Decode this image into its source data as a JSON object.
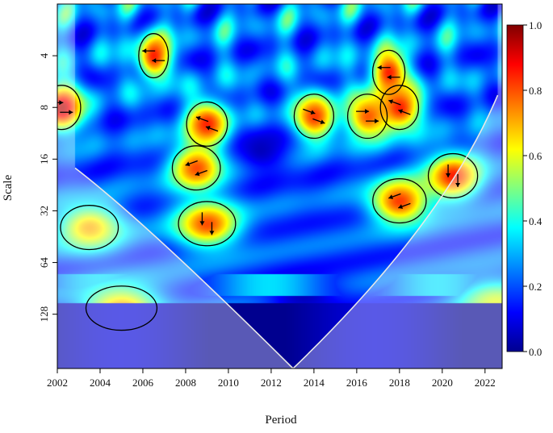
{
  "chart_data": {
    "type": "heatmap",
    "subtype": "wavelet coherence",
    "xlabel": "Period",
    "ylabel": "Scale",
    "x_ticks": [
      "2002",
      "2004",
      "2006",
      "2008",
      "2010",
      "2012",
      "2014",
      "2016",
      "2018",
      "2020",
      "2022"
    ],
    "x_tick_values": [
      2002,
      2004,
      2006,
      2008,
      2010,
      2012,
      2014,
      2016,
      2018,
      2020,
      2022
    ],
    "xlim": [
      2002,
      2022.8
    ],
    "y_ticks": [
      "4",
      "8",
      "16",
      "32",
      "64",
      "128"
    ],
    "y_tick_values": [
      4,
      8,
      16,
      32,
      64,
      128
    ],
    "ylim_log2": [
      1,
      8.05
    ],
    "y_scale": "log2",
    "y_reversed": true,
    "colorbar": {
      "ticks": [
        "0.0",
        "0.2",
        "0.4",
        "0.6",
        "0.8",
        "1.0"
      ],
      "tick_values": [
        0,
        0.2,
        0.4,
        0.6,
        0.8,
        1.0
      ],
      "range": [
        0,
        1
      ],
      "colors": [
        "#00008f",
        "#0000ff",
        "#00ffff",
        "#ffff00",
        "#ff0000",
        "#800000"
      ]
    },
    "hotspots": [
      {
        "x": 2002.2,
        "scale": 8,
        "value": 0.95
      },
      {
        "x": 2006.5,
        "scale": 4,
        "value": 0.85
      },
      {
        "x": 2009.0,
        "scale": 10,
        "value": 0.85
      },
      {
        "x": 2008.5,
        "scale": 18,
        "value": 0.8
      },
      {
        "x": 2009.0,
        "scale": 38,
        "value": 0.8
      },
      {
        "x": 2014.0,
        "scale": 9,
        "value": 0.82
      },
      {
        "x": 2016.5,
        "scale": 9,
        "value": 0.78
      },
      {
        "x": 2017.5,
        "scale": 5,
        "value": 0.85
      },
      {
        "x": 2018.0,
        "scale": 8,
        "value": 0.85
      },
      {
        "x": 2018.0,
        "scale": 28,
        "value": 0.82
      },
      {
        "x": 2020.5,
        "scale": 20,
        "value": 0.85
      },
      {
        "x": 2005.0,
        "scale": 118,
        "value": 0.72
      },
      {
        "x": 2003.5,
        "scale": 40,
        "value": 0.7
      },
      {
        "x": 2022.5,
        "scale": 110,
        "value": 0.6
      },
      {
        "x": 2013.5,
        "scale": 100,
        "value": 0.05
      },
      {
        "x": 2011.5,
        "scale": 14,
        "value": 0.05
      }
    ]
  }
}
